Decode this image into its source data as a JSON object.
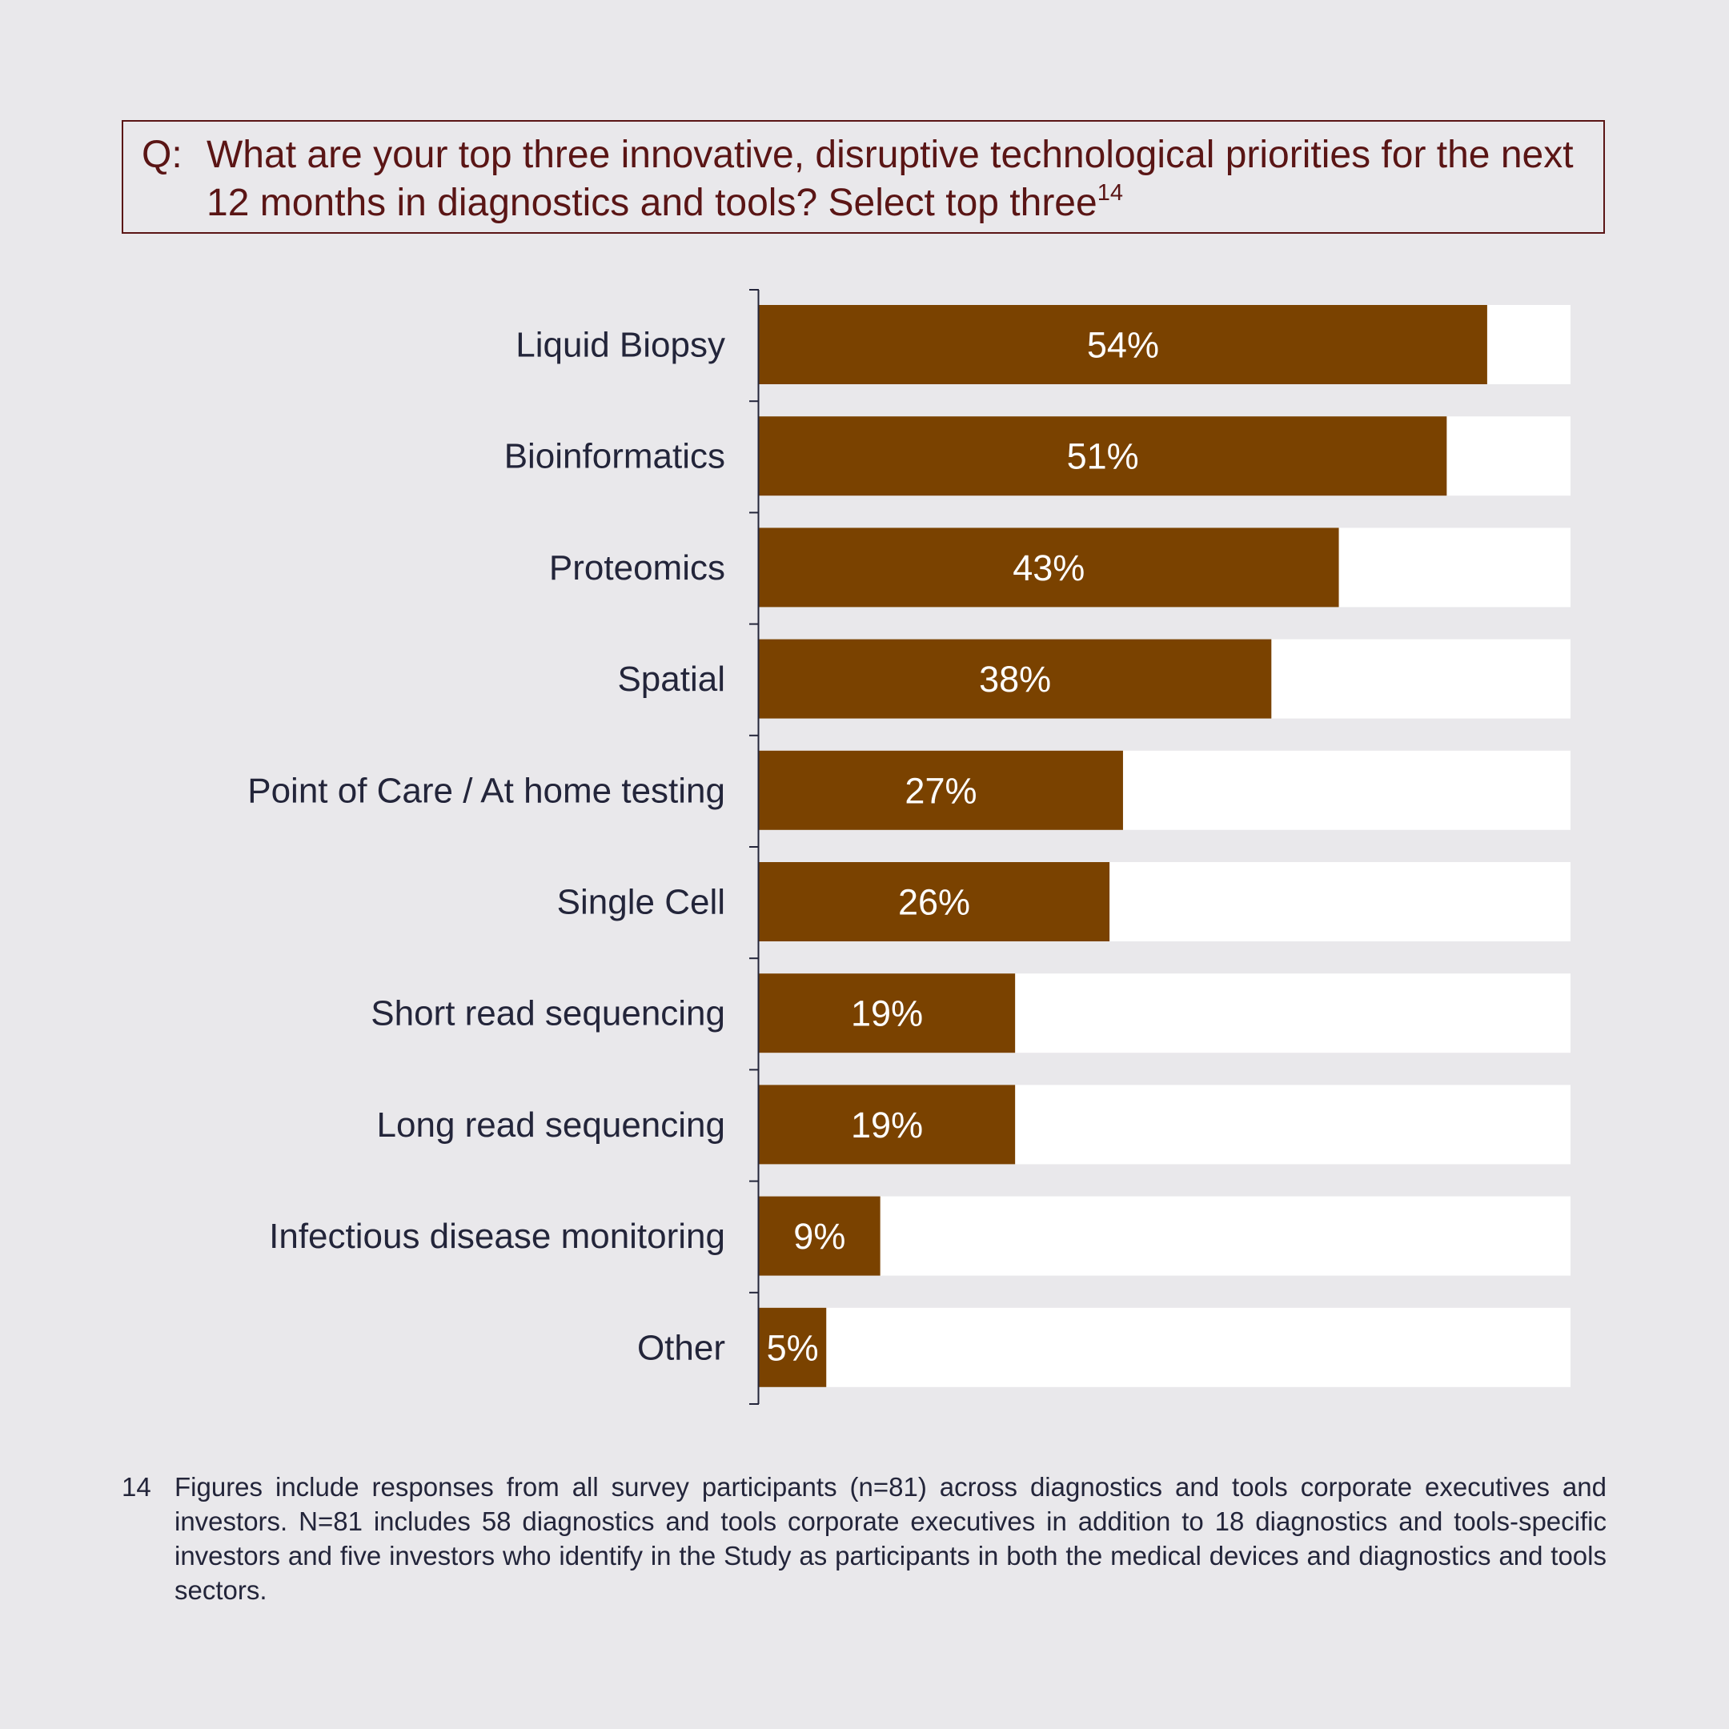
{
  "question": {
    "prefix": "Q:",
    "text": "What are your top three innovative, disruptive technological priorities for the next 12 months in diagnostics and tools? Select top three",
    "footnote_ref": "14"
  },
  "chart_data": {
    "type": "bar",
    "orientation": "horizontal",
    "categories": [
      "Liquid Biopsy",
      "Bioinformatics",
      "Proteomics",
      "Spatial",
      "Point of Care / At home testing",
      "Single Cell",
      "Short read sequencing",
      "Long read sequencing",
      "Infectious disease monitoring",
      "Other"
    ],
    "values": [
      54,
      51,
      43,
      38,
      27,
      26,
      19,
      19,
      9,
      5
    ],
    "value_labels": [
      "54%",
      "51%",
      "43%",
      "38%",
      "27%",
      "26%",
      "19%",
      "19%",
      "9%",
      "5%"
    ],
    "xlim": [
      0,
      60
    ],
    "unit": "%",
    "colors": {
      "bar": "#7a4200",
      "track": "#ffffff",
      "axis": "#23253a",
      "value_text": "#ffffff",
      "label_text": "#23253a"
    },
    "grid": false,
    "legend": "none"
  },
  "footnote": {
    "number": "14",
    "text": "Figures include responses from all survey participants (n=81) across diagnostics and tools corporate executives and investors. N=81 includes 58 diagnostics and tools corporate executives in addition to 18 diagnostics and tools-specific investors and five investors who identify in the Study as participants in both the medical devices and diagnostics and tools sectors."
  }
}
